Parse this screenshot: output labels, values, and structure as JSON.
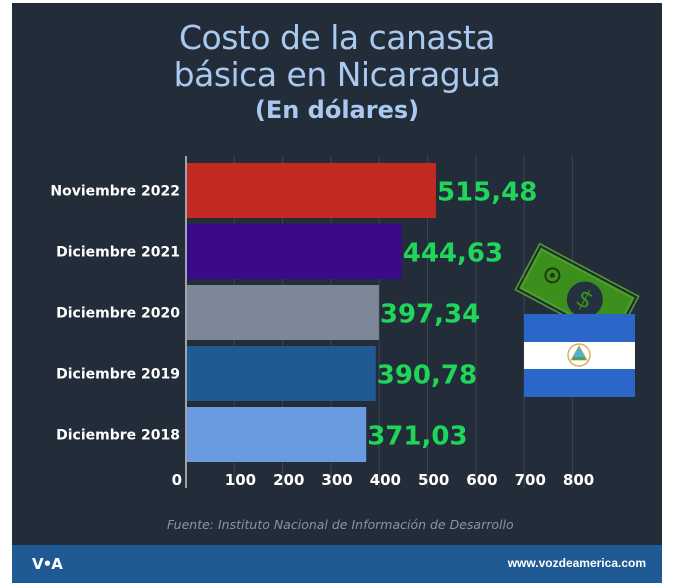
{
  "header": {
    "title_line1": "Costo de la canasta",
    "title_line2": "básica en Nicaragua",
    "subtitle": "(En dólares)"
  },
  "chart_data": {
    "type": "bar",
    "orientation": "horizontal",
    "title": "Costo de la canasta básica en Nicaragua",
    "subtitle": "(En dólares)",
    "xlabel": "",
    "ylabel": "",
    "categories": [
      "Noviembre 2022",
      "Diciembre 2021",
      "Diciembre 2020",
      "Diciembre 2019",
      "Diciembre 2018"
    ],
    "values": [
      515.48,
      444.63,
      397.34,
      390.78,
      371.03
    ],
    "value_labels": [
      "515,48",
      "444,63",
      "397,34",
      "390,78",
      "371,03"
    ],
    "bar_colors": [
      "#c22a22",
      "#3b0a8a",
      "#7c8797",
      "#1f5a95",
      "#6a9be0"
    ],
    "value_label_color": "#1fd65a",
    "xlim": [
      0,
      900
    ],
    "xticks": [
      0,
      100,
      200,
      300,
      400,
      500,
      600,
      700,
      800
    ],
    "xtick_labels": [
      "0",
      "100",
      "200",
      "300",
      "400",
      "500",
      "600",
      "700",
      "800"
    ],
    "grid": true,
    "legend": "none"
  },
  "illustration": {
    "icons": [
      "dollar-bill-icon",
      "nicaragua-flag-icon"
    ]
  },
  "source": "Fuente: Instituto Nacional de Información de Desarrollo",
  "footer": {
    "logo": "V•A",
    "url": "www.vozdeamerica.com"
  }
}
